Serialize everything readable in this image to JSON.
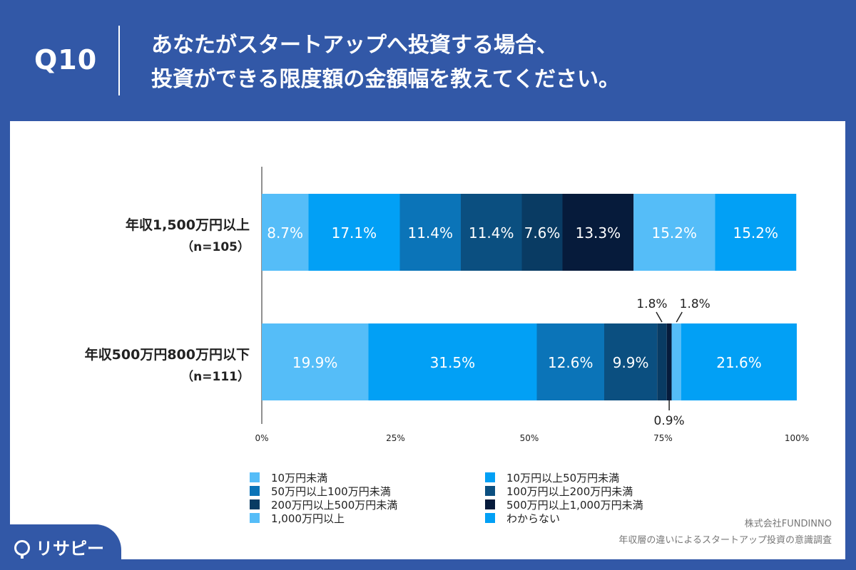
{
  "header": {
    "q_number": "Q10",
    "title_line1": "あなたがスタートアップへ投資する場合、",
    "title_line2": "投資ができる限度額の金額幅を教えてください。"
  },
  "chart_data": {
    "type": "bar",
    "orientation": "horizontal-stacked-100",
    "categories": [
      {
        "label": "年収1,500万円以上",
        "n": "（n=105）"
      },
      {
        "label": "年収500万円800万円以下",
        "n": "（n=111）"
      }
    ],
    "series": [
      {
        "name": "10万円未満",
        "color": "#55bdf8",
        "values": [
          8.7,
          19.9
        ]
      },
      {
        "name": "10万円以上50万円未満",
        "color": "#02a0f5",
        "values": [
          17.1,
          31.5
        ]
      },
      {
        "name": "50万円以上100万円未満",
        "color": "#0b74b8",
        "values": [
          11.4,
          12.6
        ]
      },
      {
        "name": "100万円以上200万円未満",
        "color": "#0b4f80",
        "values": [
          11.4,
          9.9
        ]
      },
      {
        "name": "200万円以上500万円未満",
        "color": "#093b63",
        "values": [
          7.6,
          1.8
        ]
      },
      {
        "name": "500万円以上1,000万円未満",
        "color": "#061b3b",
        "values": [
          13.3,
          0.9
        ]
      },
      {
        "name": "1,000万円以上",
        "color": "#55bdf8",
        "values": [
          15.2,
          1.8
        ]
      },
      {
        "name": "わからない",
        "color": "#02a0f5",
        "values": [
          15.2,
          21.6
        ]
      }
    ],
    "data_labels": [
      [
        "8.7%",
        "17.1%",
        "11.4%",
        "11.4%",
        "7.6%",
        "13.3%",
        "15.2%",
        "15.2%"
      ],
      [
        "19.9%",
        "31.5%",
        "12.6%",
        "9.9%",
        "1.8%",
        "0.9%",
        "1.8%",
        "21.6%"
      ]
    ],
    "x_ticks": [
      "0%",
      "25%",
      "50%",
      "75%",
      "100%"
    ],
    "xlim": [
      0,
      100
    ],
    "legend_position": "bottom"
  },
  "legend": {
    "items": [
      "10万円未満",
      "10万円以上50万円未満",
      "50万円以上100万円未満",
      "100万円以上200万円未満",
      "200万円以上500万円未満",
      "500万円以上1,000万円未満",
      "1,000万円以上",
      "わからない"
    ]
  },
  "source": {
    "company": "株式会社FUNDINNO",
    "survey": "年収層の違いによるスタートアップ投資の意識調査"
  },
  "brand": {
    "name": "リサピー"
  }
}
